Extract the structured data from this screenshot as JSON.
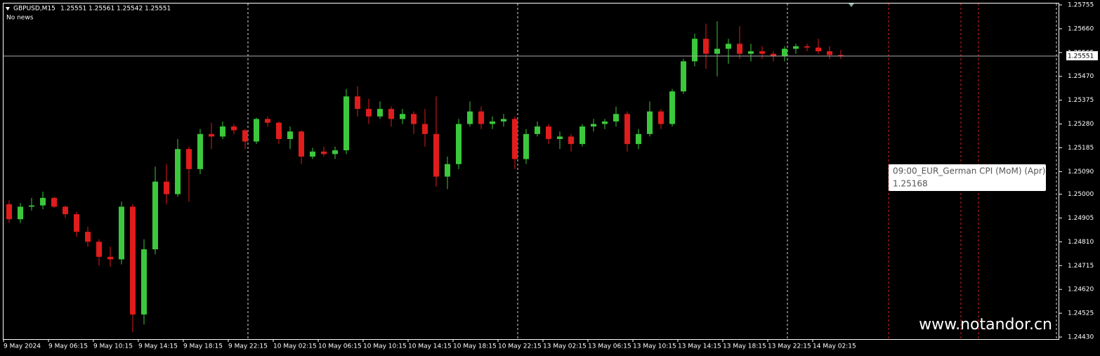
{
  "chart_data": {
    "type": "candlestick",
    "title": "GBPUSD,M15",
    "current_bar": [
      1.25551,
      1.25561,
      1.25542,
      1.25551
    ],
    "subtitle": "No news",
    "categories": [
      "9 May 2024",
      null,
      null,
      null,
      "9 May 06:15",
      null,
      null,
      null,
      "9 May 10:15",
      null,
      null,
      null,
      "9 May 14:15",
      null,
      null,
      null,
      "9 May 18:15",
      null,
      null,
      null,
      "9 May 22:15",
      null,
      null,
      null,
      "10 May 02:15",
      null,
      null,
      null,
      "10 May 06:15",
      null,
      null,
      null,
      "10 May 10:15",
      null,
      null,
      null,
      "10 May 14:15",
      null,
      null,
      null,
      "10 May 18:15",
      null,
      null,
      null,
      "10 May 22:15",
      null,
      null,
      null,
      "13 May 02:15",
      null,
      null,
      null,
      "13 May 06:15",
      null,
      null,
      null,
      "13 May 10:15",
      null,
      null,
      null,
      "13 May 14:15",
      null,
      null,
      null,
      "13 May 18:15",
      null,
      null,
      null,
      "13 May 22:15",
      null,
      null,
      null,
      "14 May 02:15",
      null,
      null
    ],
    "open": [
      1.2496,
      1.249,
      1.2495,
      1.24955,
      1.24985,
      1.2495,
      1.2492,
      1.2485,
      1.2481,
      1.2475,
      1.2474,
      1.2495,
      1.2452,
      1.2478,
      1.2505,
      1.25,
      1.2518,
      1.251,
      1.2524,
      1.2523,
      1.2527,
      1.25255,
      1.2521,
      1.253,
      1.25285,
      1.2522,
      1.2525,
      1.2515,
      1.2517,
      1.2516,
      1.25175,
      1.2539,
      1.2534,
      1.2531,
      1.2534,
      1.253,
      1.2532,
      1.2528,
      1.2524,
      1.2507,
      1.2512,
      1.2528,
      1.2533,
      1.2528,
      1.2529,
      1.253,
      1.2514,
      1.2524,
      1.2527,
      1.2522,
      1.2523,
      1.252,
      1.2527,
      1.2528,
      1.2529,
      1.2532,
      1.252,
      1.2524,
      1.2533,
      1.2528,
      1.2541,
      1.2553,
      1.2562,
      1.2556,
      1.2558,
      1.256,
      1.2556,
      1.2557,
      1.2556,
      1.2555,
      1.2558,
      1.2559,
      1.25585,
      1.2557,
      1.25555
    ],
    "high": [
      1.24975,
      1.24965,
      1.24985,
      1.2501,
      1.2499,
      1.24955,
      1.2493,
      1.2487,
      1.2482,
      1.2479,
      1.2497,
      1.2496,
      1.2482,
      1.2511,
      1.2512,
      1.2522,
      1.2519,
      1.2526,
      1.25285,
      1.2529,
      1.2528,
      1.2526,
      1.25305,
      1.2531,
      1.2529,
      1.2527,
      1.25255,
      1.25185,
      1.2519,
      1.2519,
      1.2542,
      1.2543,
      1.2538,
      1.2537,
      1.2535,
      1.2534,
      1.2533,
      1.2534,
      1.2539,
      1.2515,
      1.253,
      1.2537,
      1.2535,
      1.2531,
      1.2532,
      1.2531,
      1.2526,
      1.2529,
      1.2528,
      1.2525,
      1.2524,
      1.2528,
      1.253,
      1.253,
      1.2535,
      1.2533,
      1.2526,
      1.2537,
      1.2534,
      1.2542,
      1.2554,
      1.2564,
      1.2568,
      1.2569,
      1.2562,
      1.2567,
      1.256,
      1.2559,
      1.2557,
      1.2559,
      1.256,
      1.256,
      1.2562,
      1.2559,
      1.25575
    ],
    "low": [
      1.24885,
      1.24885,
      1.24935,
      1.2494,
      1.24945,
      1.24905,
      1.2483,
      1.2479,
      1.24715,
      1.2471,
      1.2472,
      1.2445,
      1.2448,
      1.2476,
      1.2496,
      1.2499,
      1.2497,
      1.2508,
      1.2518,
      1.2522,
      1.2524,
      1.2518,
      1.252,
      1.2527,
      1.252,
      1.2518,
      1.2512,
      1.2514,
      1.2515,
      1.2514,
      1.2516,
      1.2531,
      1.2528,
      1.253,
      1.2527,
      1.2528,
      1.2524,
      1.2519,
      1.2503,
      1.2502,
      1.251,
      1.2527,
      1.2526,
      1.2526,
      1.2527,
      1.251,
      1.2512,
      1.2523,
      1.252,
      1.2518,
      1.2517,
      1.2519,
      1.2525,
      1.2526,
      1.2527,
      1.2517,
      1.2518,
      1.2523,
      1.2526,
      1.2527,
      1.254,
      1.2551,
      1.255,
      1.2547,
      1.2552,
      1.2554,
      1.2553,
      1.2554,
      1.2553,
      1.2553,
      1.2556,
      1.2557,
      1.2556,
      1.2554,
      1.2554
    ],
    "close": [
      1.249,
      1.2495,
      1.24955,
      1.24985,
      1.2495,
      1.2492,
      1.2485,
      1.2481,
      1.2475,
      1.2474,
      1.2495,
      1.2452,
      1.2478,
      1.2505,
      1.25,
      1.2518,
      1.251,
      1.2524,
      1.2523,
      1.2527,
      1.25255,
      1.2521,
      1.253,
      1.25285,
      1.2522,
      1.2525,
      1.2515,
      1.2517,
      1.2516,
      1.25175,
      1.2539,
      1.2534,
      1.2531,
      1.2534,
      1.253,
      1.2532,
      1.2528,
      1.2524,
      1.2507,
      1.2512,
      1.2528,
      1.2533,
      1.2528,
      1.2529,
      1.253,
      1.2514,
      1.2524,
      1.2527,
      1.2522,
      1.2523,
      1.252,
      1.2527,
      1.2528,
      1.2529,
      1.2532,
      1.252,
      1.2524,
      1.2533,
      1.2528,
      1.2541,
      1.2553,
      1.2562,
      1.2556,
      1.2558,
      1.256,
      1.2556,
      1.2557,
      1.2556,
      1.2555,
      1.2558,
      1.2559,
      1.25585,
      1.2557,
      1.25555,
      1.25551
    ],
    "up_color": "#3cc83c",
    "down_color": "#e01c1c",
    "ylim": [
      1.2443,
      1.25755
    ],
    "yticks": [
      1.25755,
      {
        "value": 1.2566,
        "label": "1.25660"
      },
      1.25565,
      {
        "value": 1.2547,
        "label": "1.25470"
      },
      1.25375,
      {
        "value": 1.2528,
        "label": "1.25280"
      },
      1.25185,
      {
        "value": 1.2509,
        "label": "1.25090"
      },
      {
        "value": 1.25,
        "label": "1.25000"
      },
      1.24905,
      {
        "value": 1.2481,
        "label": "1.24810"
      },
      1.24715,
      {
        "value": 1.2462,
        "label": "1.24620"
      },
      1.24525,
      {
        "value": 1.2443,
        "label": "1.24430"
      }
    ],
    "annotation": {
      "title": "09:00_EUR_German CPI (MoM) (Apr)",
      "value": 1.25168
    },
    "watermark": "www.notandor.cn"
  }
}
